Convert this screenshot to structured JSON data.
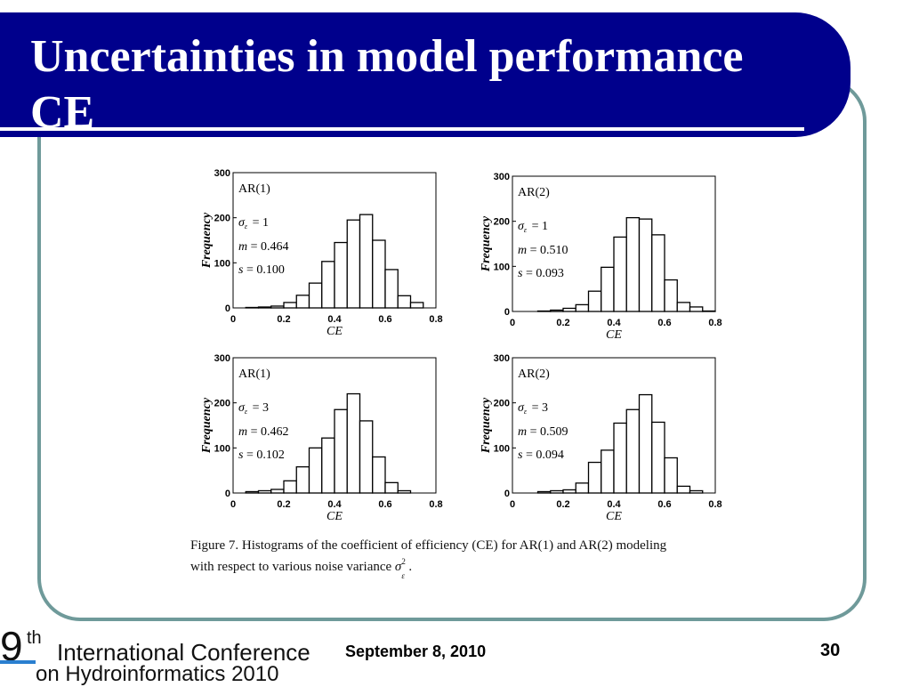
{
  "slide": {
    "title_line1": "Uncertainties in model performance",
    "title_line2": "CE",
    "date": "September 8, 2010",
    "page_number": "30",
    "logo_num": "9",
    "logo_sup": "th",
    "logo_line1": "International Conference",
    "logo_line2": "on Hydroinformatics 2010",
    "caption_line1": "Figure 7. Histograms of the coefficient of efficiency (CE) for AR(1) and AR(2) modeling",
    "caption_line2_prefix": "with respect to various noise variance",
    "caption_sigma": "σ",
    "caption_sub": "ε",
    "caption_sup": "2",
    "caption_end": "."
  },
  "colors": {
    "title_bg": "#00008c",
    "frame": "#6f9a9a",
    "logo_bar": "#2a7fd0"
  },
  "chart_data": [
    {
      "type": "bar",
      "model": "AR(1)",
      "sigma_label": "σ",
      "sigma_sub": "ε",
      "sigma_value": "= 1",
      "m_label": "m",
      "m_value": "= 0.464",
      "s_label": "s",
      "s_value": "= 0.100",
      "xlabel": "CE",
      "ylabel": "Frequency",
      "xlim": [
        0,
        0.8
      ],
      "ylim": [
        0,
        300
      ],
      "xticks": [
        "0",
        "0.2",
        "0.4",
        "0.6",
        "0.8"
      ],
      "yticks": [
        "0",
        "100",
        "200",
        "300"
      ],
      "bin_width": 0.05,
      "bin_starts": [
        0.05,
        0.1,
        0.15,
        0.2,
        0.25,
        0.3,
        0.35,
        0.4,
        0.45,
        0.5,
        0.55,
        0.6,
        0.65,
        0.7
      ],
      "values": [
        1,
        2,
        4,
        12,
        28,
        55,
        103,
        145,
        195,
        207,
        150,
        85,
        27,
        12
      ]
    },
    {
      "type": "bar",
      "model": "AR(2)",
      "sigma_label": "σ",
      "sigma_sub": "ε",
      "sigma_value": "= 1",
      "m_label": "m",
      "m_value": "= 0.510",
      "s_label": "s",
      "s_value": "= 0.093",
      "xlabel": "CE",
      "ylabel": "Frequency",
      "xlim": [
        0,
        0.8
      ],
      "ylim": [
        0,
        300
      ],
      "xticks": [
        "0",
        "0.2",
        "0.4",
        "0.6",
        "0.8"
      ],
      "yticks": [
        "0",
        "100",
        "200",
        "300"
      ],
      "bin_width": 0.05,
      "bin_starts": [
        0.1,
        0.15,
        0.2,
        0.25,
        0.3,
        0.35,
        0.4,
        0.45,
        0.5,
        0.55,
        0.6,
        0.65,
        0.7,
        0.75
      ],
      "values": [
        1,
        3,
        7,
        15,
        45,
        98,
        165,
        208,
        205,
        170,
        70,
        20,
        10,
        1
      ]
    },
    {
      "type": "bar",
      "model": "AR(1)",
      "sigma_label": "σ",
      "sigma_sub": "ε",
      "sigma_value": "= 3",
      "m_label": "m",
      "m_value": "= 0.462",
      "s_label": "s",
      "s_value": "= 0.102",
      "xlabel": "CE",
      "ylabel": "Frequency",
      "xlim": [
        0,
        0.8
      ],
      "ylim": [
        0,
        300
      ],
      "xticks": [
        "0",
        "0.2",
        "0.4",
        "0.6",
        "0.8"
      ],
      "yticks": [
        "0",
        "100",
        "200",
        "300"
      ],
      "bin_width": 0.05,
      "bin_starts": [
        0.05,
        0.1,
        0.15,
        0.2,
        0.25,
        0.3,
        0.35,
        0.4,
        0.45,
        0.5,
        0.55,
        0.6,
        0.65
      ],
      "values": [
        3,
        5,
        8,
        27,
        58,
        100,
        122,
        185,
        220,
        160,
        80,
        23,
        5
      ]
    },
    {
      "type": "bar",
      "model": "AR(2)",
      "sigma_label": "σ",
      "sigma_sub": "ε",
      "sigma_value": "= 3",
      "m_label": "m",
      "m_value": "= 0.509",
      "s_label": "s",
      "s_value": "= 0.094",
      "xlabel": "CE",
      "ylabel": "Frequency",
      "xlim": [
        0,
        0.8
      ],
      "ylim": [
        0,
        300
      ],
      "xticks": [
        "0",
        "0.2",
        "0.4",
        "0.6",
        "0.8"
      ],
      "yticks": [
        "0",
        "100",
        "200",
        "300"
      ],
      "bin_width": 0.05,
      "bin_starts": [
        0.1,
        0.15,
        0.2,
        0.25,
        0.3,
        0.35,
        0.4,
        0.45,
        0.5,
        0.55,
        0.6,
        0.65,
        0.7
      ],
      "values": [
        3,
        5,
        7,
        22,
        68,
        95,
        155,
        185,
        218,
        157,
        78,
        15,
        5
      ]
    }
  ]
}
